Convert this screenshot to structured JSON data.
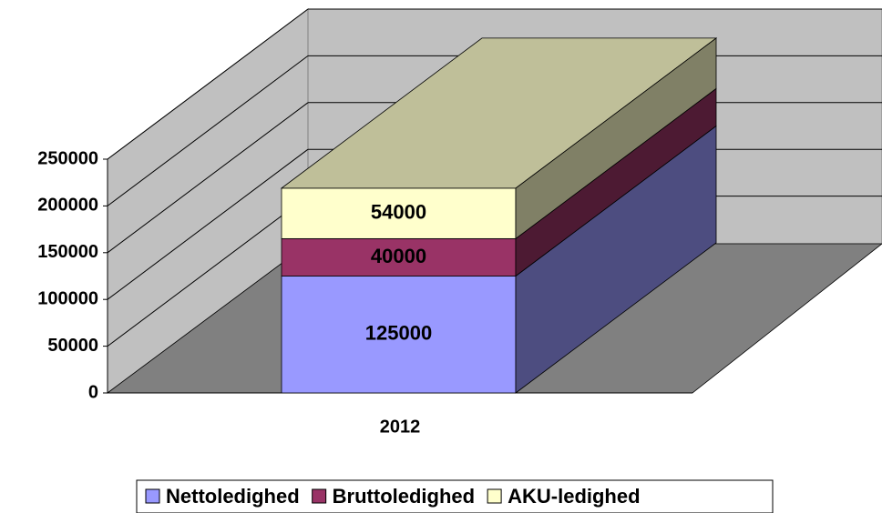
{
  "chart_data": {
    "type": "bar",
    "stacked": true,
    "categories": [
      "2012"
    ],
    "series": [
      {
        "name": "Nettoledighed",
        "color": "#9999ff",
        "values": [
          125000
        ]
      },
      {
        "name": "Bruttoledighed",
        "color": "#993366",
        "values": [
          40000
        ]
      },
      {
        "name": "AKU-ledighed",
        "color": "#ffffcc",
        "values": [
          54000
        ]
      }
    ],
    "ylim": [
      0,
      250000
    ],
    "yticks": [
      0,
      50000,
      100000,
      150000,
      200000,
      250000
    ],
    "grid": true,
    "legend": "bottom"
  }
}
